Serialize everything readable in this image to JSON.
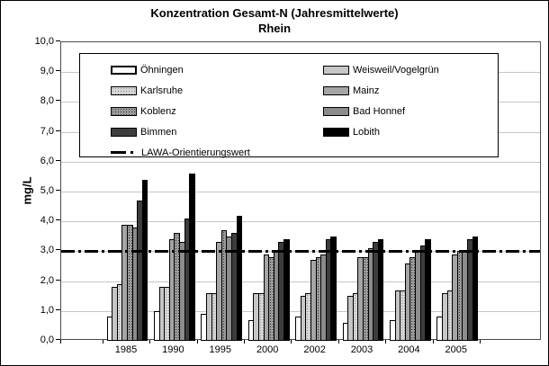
{
  "chart_data": {
    "type": "bar",
    "title": "Konzentration Gesamt-N (Jahresmittelwerte)",
    "subtitle": "Rhein",
    "ylabel": "mg/L",
    "ylim": [
      0,
      10
    ],
    "y_ticks": [
      "10,0",
      "9,0",
      "8,0",
      "7,0",
      "6,0",
      "5,0",
      "4,0",
      "3,0",
      "2,0",
      "1,0",
      "0,0"
    ],
    "grid": true,
    "legend_position": "top-inside",
    "categories": [
      "1985",
      "1990",
      "1995",
      "2000",
      "2002",
      "2003",
      "2004",
      "2005"
    ],
    "series": [
      {
        "name": "Öhningen",
        "values": [
          0.8,
          1.0,
          0.9,
          0.7,
          0.8,
          0.6,
          0.7,
          0.8
        ],
        "fill": "#ffffff",
        "pattern": "none"
      },
      {
        "name": "Weisweil/Vogelgrün",
        "values": [
          1.8,
          1.8,
          1.6,
          1.6,
          1.5,
          1.5,
          1.7,
          1.6
        ],
        "fill": "#c6c6c6",
        "pattern": "none"
      },
      {
        "name": "Karlsruhe",
        "values": [
          1.9,
          1.8,
          1.6,
          1.6,
          1.6,
          1.6,
          1.7,
          1.7
        ],
        "fill": "#d6d6d6",
        "pattern": "dots-light"
      },
      {
        "name": "Mainz",
        "values": [
          3.9,
          3.4,
          3.3,
          2.9,
          2.7,
          2.8,
          2.6,
          2.9
        ],
        "fill": "#a5a5a5",
        "pattern": "none"
      },
      {
        "name": "Koblenz",
        "values": [
          3.9,
          3.6,
          3.7,
          2.8,
          2.8,
          2.8,
          2.8,
          3.0
        ],
        "fill": "#9a9a9a",
        "pattern": "dots-dark"
      },
      {
        "name": "Bad Honnef",
        "values": [
          3.8,
          3.3,
          3.5,
          3.0,
          2.9,
          3.1,
          3.0,
          3.0
        ],
        "fill": "#8c8c8c",
        "pattern": "none"
      },
      {
        "name": "Bimmen",
        "values": [
          4.7,
          4.1,
          3.6,
          3.3,
          3.4,
          3.3,
          3.2,
          3.4
        ],
        "fill": "#3d3d3d",
        "pattern": "none"
      },
      {
        "name": "Lobith",
        "values": [
          5.4,
          5.6,
          4.2,
          3.4,
          3.5,
          3.4,
          3.4,
          3.5
        ],
        "fill": "#000000",
        "pattern": "none"
      }
    ],
    "reference_line": {
      "name": "LAWA-Orientierungswert",
      "value": 3.0,
      "style": "dash-dot",
      "color": "#000000"
    }
  }
}
